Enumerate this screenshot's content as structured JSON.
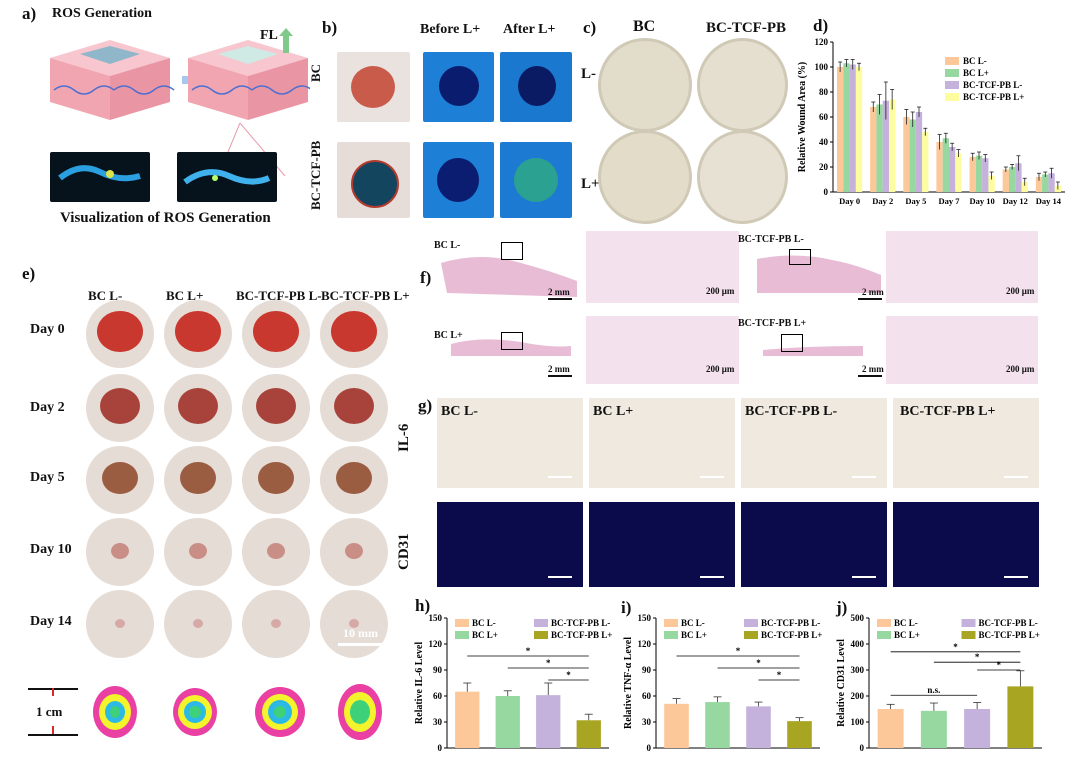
{
  "panels": {
    "a": {
      "label": "a)",
      "title": "ROS Generation",
      "fl_label": "FL",
      "caption": "Visualization of ROS Generation"
    },
    "b": {
      "label": "b)",
      "col_before": "Before L+",
      "col_after": "After L+",
      "row_bc": "BC",
      "row_tcf": "BC-TCF-PB"
    },
    "c": {
      "label": "c)",
      "col_bc": "BC",
      "col_tcf": "BC-TCF-PB",
      "row_lminus": "L-",
      "row_lplus": "L+"
    },
    "d": {
      "label": "d)"
    },
    "e": {
      "label": "e)",
      "cols": [
        "BC L-",
        "BC L+",
        "BC-TCF-PB L-",
        "BC-TCF-PB L+"
      ],
      "rows": [
        "Day 0",
        "Day 2",
        "Day 5",
        "Day 10",
        "Day 14"
      ],
      "scale": "10 mm",
      "cm": "1 cm"
    },
    "f": {
      "label": "f)",
      "tags": [
        "BC L-",
        "BC-TCF-PB L-",
        "BC L+",
        "BC-TCF-PB L+"
      ],
      "scale_mm": "2 mm",
      "scale_um": "200 μm"
    },
    "g": {
      "label": "g)",
      "cols": [
        "BC L-",
        "BC L+",
        "BC-TCF-PB L-",
        "BC-TCF-PB L+"
      ],
      "row_il6": "IL-6",
      "row_cd31": "CD31"
    },
    "h": {
      "label": "h)"
    },
    "i": {
      "label": "i)"
    },
    "j": {
      "label": "j)"
    }
  },
  "colors": {
    "bc_lminus": "#fcc89a",
    "bc_lplus": "#97d7a0",
    "tcf_lminus": "#c4b2dc",
    "tcf_lplus": "#fdfd9f",
    "tcf_lplus_dark": "#a8a522"
  },
  "chart_data": [
    {
      "id": "d",
      "type": "bar",
      "ylabel": "Relative Wound Area (%)",
      "categories": [
        "Day 0",
        "Day 2",
        "Day 5",
        "Day 7",
        "Day 10",
        "Day 12",
        "Day 14"
      ],
      "ylim": [
        0,
        120
      ],
      "yticks": [
        0,
        20,
        40,
        60,
        80,
        100,
        120
      ],
      "series": [
        {
          "name": "BC L-",
          "color": "#fcc89a",
          "values": [
            100,
            68,
            60,
            40,
            28,
            18,
            12
          ],
          "err": [
            4,
            4,
            6,
            6,
            3,
            2,
            3
          ]
        },
        {
          "name": "BC L+",
          "color": "#97d7a0",
          "values": [
            103,
            70,
            58,
            43,
            29,
            20,
            14
          ],
          "err": [
            3,
            8,
            6,
            4,
            3,
            2,
            2
          ]
        },
        {
          "name": "BC-TCF-PB L-",
          "color": "#c4b2dc",
          "values": [
            102,
            73,
            64,
            36,
            27,
            23,
            15
          ],
          "err": [
            4,
            15,
            4,
            3,
            3,
            6,
            4
          ]
        },
        {
          "name": "BC-TCF-PB L+",
          "color": "#fdfd9f",
          "values": [
            100,
            74,
            48,
            31,
            13,
            8,
            5
          ],
          "err": [
            3,
            8,
            3,
            3,
            3,
            3,
            3
          ]
        }
      ]
    },
    {
      "id": "h",
      "type": "bar",
      "ylabel": "Relative IL-6 Level",
      "categories": [
        "BC L-",
        "BC L+",
        "BC-TCF-PB L-",
        "BC-TCF-PB L+"
      ],
      "ylim": [
        0,
        150
      ],
      "yticks": [
        0,
        30,
        60,
        90,
        120,
        150
      ],
      "values": [
        65,
        60,
        61,
        32
      ],
      "err": [
        10,
        6,
        14,
        7
      ],
      "colors": [
        "#fcc89a",
        "#97d7a0",
        "#c4b2dc",
        "#a8a522"
      ],
      "legend": [
        "BC L-",
        "BC-TCF-PB L-",
        "BC L+",
        "BC-TCF-PB L+"
      ],
      "sig": [
        "*",
        "*",
        "*"
      ]
    },
    {
      "id": "i",
      "type": "bar",
      "ylabel": "Relative TNF-α Level",
      "categories": [
        "BC L-",
        "BC L+",
        "BC-TCF-PB L-",
        "BC-TCF-PB L+"
      ],
      "ylim": [
        0,
        150
      ],
      "yticks": [
        0,
        30,
        60,
        90,
        120,
        150
      ],
      "values": [
        51,
        53,
        48,
        31
      ],
      "err": [
        6,
        6,
        5,
        4
      ],
      "colors": [
        "#fcc89a",
        "#97d7a0",
        "#c4b2dc",
        "#a8a522"
      ],
      "legend": [
        "BC L-",
        "BC-TCF-PB L-",
        "BC L+",
        "BC-TCF-PB L+"
      ],
      "sig": [
        "*",
        "*",
        "*"
      ]
    },
    {
      "id": "j",
      "type": "bar",
      "ylabel": "Relative CD31 Level",
      "categories": [
        "BC L-",
        "BC L+",
        "BC-TCF-PB L-",
        "BC-TCF-PB L+"
      ],
      "ylim": [
        0,
        500
      ],
      "yticks": [
        0,
        100,
        200,
        300,
        400,
        500
      ],
      "values": [
        150,
        143,
        150,
        237
      ],
      "err": [
        18,
        30,
        25,
        60
      ],
      "colors": [
        "#fcc89a",
        "#97d7a0",
        "#c4b2dc",
        "#a8a522"
      ],
      "legend": [
        "BC L-",
        "BC-TCF-PB L-",
        "BC L+",
        "BC-TCF-PB L+"
      ],
      "sig": [
        "n.s.",
        "*",
        "*",
        "*"
      ]
    }
  ]
}
